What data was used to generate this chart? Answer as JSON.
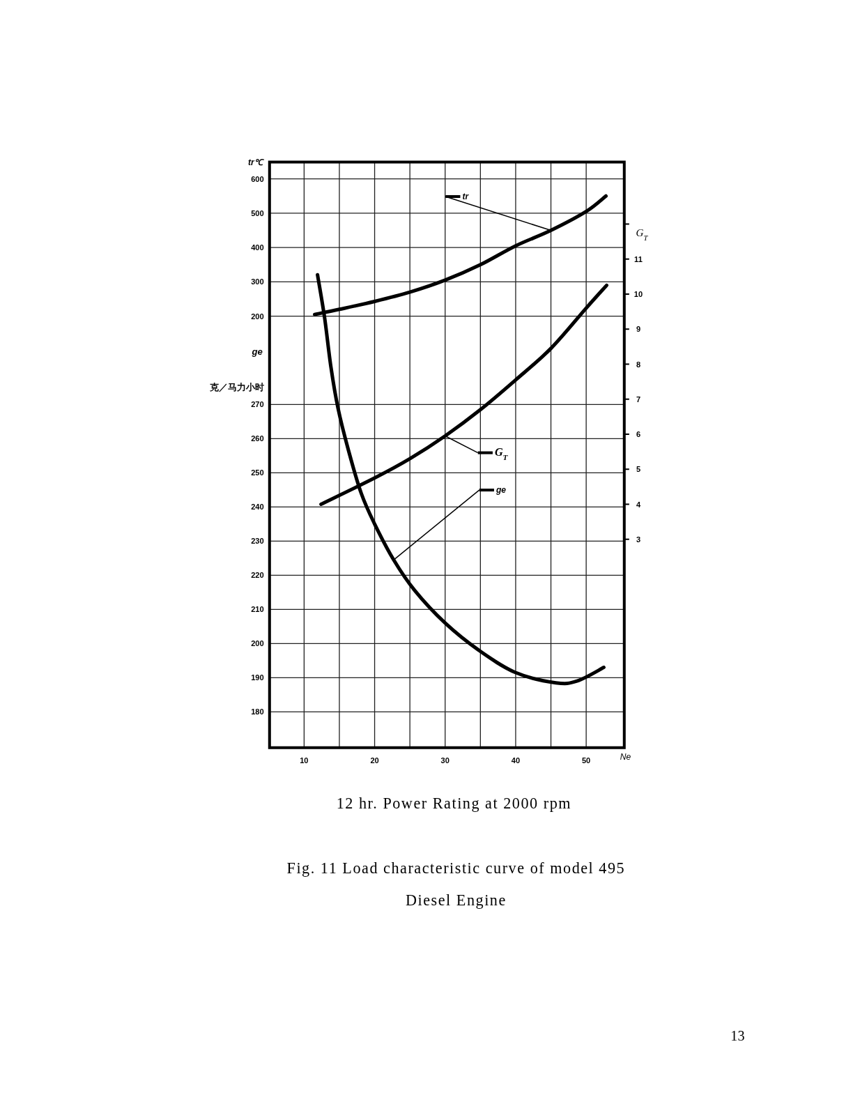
{
  "chart_data": {
    "type": "line",
    "ylabel": "tr℃",
    "y2label": "G$_{T}$",
    "y3label": "ge 克／马力小时",
    "xlabel": "Ne",
    "annotations": [
      "12 hr. Power Rating at 2000 rpm",
      "Fig. 11 Load characteristic curve of model 495 Diesel Engine",
      "13"
    ],
    "xlim": [
      5.1,
      55.4
    ],
    "xticks": [
      10,
      {
        "value": 15,
        "label": null
      },
      20,
      {
        "value": 25,
        "label": null
      },
      30,
      {
        "value": 35,
        "label": null
      },
      40,
      {
        "value": 45,
        "label": null
      },
      50
    ],
    "ylim": [
      -1057,
      649
    ],
    "yticks": [
      200,
      300,
      400,
      500,
      600
    ],
    "y2lim": [
      -2.95,
      13.77
    ],
    "y2ticks": [
      3,
      4,
      5,
      6,
      7,
      8,
      9,
      10,
      11,
      {
        "value": 12,
        "label": null
      }
    ],
    "y3lim": [
      169.5,
      341
    ],
    "y3ticks": [
      180,
      190,
      200,
      210,
      220,
      230,
      240,
      250,
      260,
      270
    ],
    "grid": true,
    "legend": "top right",
    "marker": "none",
    "line_style": "solid",
    "series": [
      {
        "name": "tr",
        "color": "#000000",
        "axis": "y",
        "x": [
          11.5,
          15,
          20,
          25,
          30,
          35,
          40,
          45,
          50,
          52.8
        ],
        "values": [
          205,
          220,
          243,
          270,
          305,
          350,
          405,
          450,
          505,
          550
        ]
      },
      {
        "name": "G$_{T}$",
        "color": "#000000",
        "axis": "y2",
        "x": [
          12.4,
          20,
          25,
          30,
          35,
          40,
          45,
          50,
          52.9
        ],
        "values": [
          4.0,
          4.75,
          5.3,
          5.95,
          6.7,
          7.55,
          8.45,
          9.6,
          10.25
        ]
      },
      {
        "name": "ge",
        "color": "#000000",
        "axis": "y3",
        "x": [
          11.9,
          12.9,
          13.8,
          14.8,
          16.3,
          18.1,
          20,
          22.7,
          25.7,
          30,
          34.8,
          40,
          45.7,
          48.7,
          52.5
        ],
        "values": [
          308,
          295.5,
          281,
          269,
          256.5,
          244,
          235,
          224.5,
          215.5,
          206,
          198,
          191.5,
          188.5,
          189,
          193
        ]
      }
    ]
  }
}
